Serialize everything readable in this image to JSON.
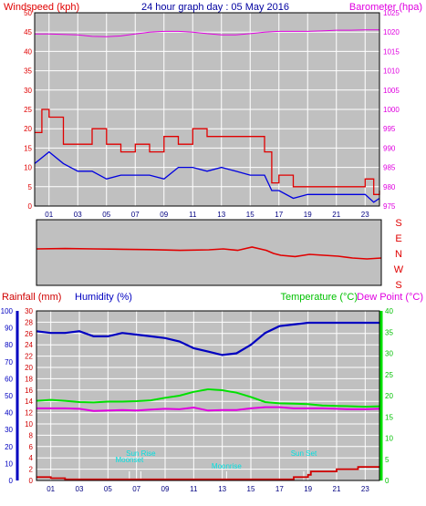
{
  "colors": {
    "background": "#ffffff",
    "plot_bg": "#c0c0c0",
    "grid": "#ffffff",
    "wind": "#e00000",
    "wind_avg": "#0000e0",
    "barometer": "#e000e0",
    "direction": "#e00000",
    "rain": "#d00000",
    "humidity": "#0000c0",
    "temperature": "#00e000",
    "dewpoint": "#e000e0",
    "sun_marks": "#00e0e0",
    "title": "#0000a0"
  },
  "header": {
    "title": "24 hour graph day : 05 May 2016",
    "wind_label": "Windspeed (kph)",
    "baro_label": "Barometer (hpa)"
  },
  "direction_labels": [
    "S",
    "E",
    "N",
    "W",
    "S"
  ],
  "lower_header": {
    "rain_label": "Rainfall (mm)",
    "humidity_label": "Humidity (%)",
    "temp_label": "Temperature (°C)",
    "dew_label": "Dew Point (°C)"
  },
  "annotations": [
    {
      "text": "Sun Rise",
      "hour": 6.3
    },
    {
      "text": "Moonset",
      "hour": 5.5
    },
    {
      "text": "Moonrise",
      "hour": 12.3
    },
    {
      "text": "Sun Set",
      "hour": 17.7
    }
  ],
  "chart_data": [
    {
      "type": "line",
      "title": "24 hour graph day : 05 May 2016",
      "xlabel": "",
      "x_ticks": [
        "01",
        "03",
        "05",
        "07",
        "09",
        "11",
        "13",
        "15",
        "17",
        "19",
        "21",
        "23"
      ],
      "x_range_hours": [
        23,
        47
      ],
      "ylabel_left": "Windspeed (kph)",
      "ylim_left": [
        0,
        50
      ],
      "yticks_left": [
        0,
        5,
        10,
        15,
        20,
        25,
        30,
        35,
        40,
        45,
        50
      ],
      "ylabel_right": "Barometer (hpa)",
      "ylim_right": [
        975,
        1025
      ],
      "yticks_right": [
        975,
        980,
        985,
        990,
        995,
        1000,
        1005,
        1010,
        1015,
        1020,
        1025
      ],
      "grid": true,
      "series": [
        {
          "axis": "left",
          "x": [
            23,
            23.5,
            24,
            25,
            26,
            27,
            28,
            29,
            30,
            31,
            32,
            33,
            34,
            35,
            36,
            37,
            38,
            39,
            39.5,
            40,
            41,
            42,
            43,
            44,
            45,
            46,
            46.6,
            47
          ],
          "values": [
            19,
            25,
            23,
            16,
            16,
            20,
            16,
            14,
            16,
            14,
            18,
            16,
            20,
            18,
            18,
            18,
            18,
            14,
            6,
            8,
            5,
            5,
            5,
            5,
            5,
            7,
            3,
            4
          ]
        },
        {
          "axis": "left",
          "x": [
            23,
            24,
            25,
            26,
            27,
            28,
            29,
            30,
            31,
            32,
            33,
            34,
            35,
            36,
            37,
            38,
            39,
            39.5,
            40,
            41,
            42,
            43,
            44,
            45,
            46,
            46.6,
            47
          ],
          "values": [
            11,
            14,
            11,
            9,
            9,
            7,
            8,
            8,
            8,
            7,
            10,
            10,
            9,
            10,
            9,
            8,
            8,
            4,
            4,
            2,
            3,
            3,
            3,
            3,
            3,
            1,
            2
          ]
        },
        {
          "axis": "right",
          "x": [
            23,
            24,
            25,
            26,
            27,
            28,
            29,
            30,
            31,
            32,
            33,
            34,
            35,
            36,
            37,
            38,
            39,
            40,
            41,
            42,
            43,
            44,
            45,
            46,
            47
          ],
          "values": [
            1019.5,
            1019.5,
            1019.4,
            1019.3,
            1018.9,
            1018.8,
            1019,
            1019.5,
            1020,
            1020.2,
            1020.2,
            1020,
            1019.6,
            1019.3,
            1019.3,
            1019.6,
            1020,
            1020.2,
            1020.2,
            1020.2,
            1020.3,
            1020.5,
            1020.5,
            1020.6,
            1020.6
          ]
        }
      ]
    },
    {
      "type": "line",
      "ylim": [
        0,
        360
      ],
      "series": [
        {
          "x": [
            23,
            25,
            27,
            29,
            31,
            33,
            35,
            36,
            37,
            38,
            39,
            39.5,
            40,
            41,
            42,
            43,
            44,
            45,
            46,
            47
          ],
          "values": [
            200,
            202,
            200,
            198,
            196,
            192,
            195,
            200,
            192,
            210,
            192,
            175,
            165,
            158,
            170,
            165,
            160,
            150,
            145,
            150
          ]
        }
      ]
    },
    {
      "type": "line",
      "x_ticks": [
        "01",
        "03",
        "05",
        "07",
        "09",
        "11",
        "13",
        "15",
        "17",
        "19",
        "21",
        "23"
      ],
      "x_range_hours": [
        23,
        47
      ],
      "ylabel_rain": "Rainfall (mm)",
      "ylim_rain": [
        0,
        30
      ],
      "yticks_rain": [
        0,
        2,
        4,
        6,
        8,
        10,
        12,
        14,
        16,
        18,
        20,
        22,
        24,
        26,
        28,
        30
      ],
      "ylabel_humidity": "Humidity (%)",
      "ylim_humidity": [
        0,
        100
      ],
      "yticks_humidity": [
        0,
        10,
        20,
        30,
        40,
        50,
        60,
        70,
        80,
        90,
        100
      ],
      "ylabel_temp": "Temperature (°C)",
      "ylim_temp": [
        0,
        40
      ],
      "yticks_temp": [
        0,
        5,
        10,
        15,
        20,
        25,
        30,
        35,
        40
      ],
      "grid": true,
      "series": [
        {
          "axis": "rain",
          "x": [
            23,
            24,
            25,
            35,
            40,
            41,
            42,
            42.2,
            43,
            44,
            45,
            45.5,
            46,
            47
          ],
          "values": [
            0.6,
            0.4,
            0.2,
            0.2,
            0.2,
            0.6,
            1.0,
            1.6,
            1.6,
            2.0,
            2.0,
            2.4,
            2.4,
            2.4
          ]
        },
        {
          "axis": "humidity",
          "x": [
            23,
            24,
            25,
            26,
            27,
            28,
            29,
            30,
            31,
            32,
            33,
            34,
            35,
            36,
            37,
            38,
            39,
            40,
            41,
            42,
            43,
            44,
            45,
            46,
            47
          ],
          "values": [
            88,
            87,
            87,
            88,
            85,
            85,
            87,
            86,
            85,
            84,
            82,
            78,
            76,
            74,
            75,
            80,
            87,
            91,
            92,
            93,
            93,
            93,
            93,
            93,
            93
          ]
        },
        {
          "axis": "temp",
          "x": [
            23,
            24,
            25,
            26,
            27,
            28,
            29,
            30,
            31,
            32,
            33,
            34,
            35,
            36,
            37,
            38,
            39,
            40,
            41,
            42,
            43,
            44,
            45,
            46,
            47
          ],
          "values": [
            18.8,
            19,
            18.8,
            18.5,
            18.4,
            18.6,
            18.6,
            18.7,
            18.9,
            19.5,
            20,
            20.9,
            21.5,
            21.3,
            20.7,
            19.7,
            18.5,
            18.2,
            18.1,
            18,
            17.7,
            17.6,
            17.5,
            17.4,
            17.5
          ]
        },
        {
          "axis": "temp",
          "x": [
            23,
            24,
            25,
            26,
            27,
            28,
            29,
            30,
            31,
            32,
            33,
            34,
            35,
            36,
            37,
            38,
            39,
            40,
            41,
            42,
            43,
            44,
            45,
            46,
            47
          ],
          "values": [
            17,
            17,
            17,
            16.9,
            16.4,
            16.5,
            16.6,
            16.5,
            16.7,
            16.9,
            16.8,
            17.2,
            16.5,
            16.6,
            16.6,
            17,
            17.3,
            17.3,
            17,
            17,
            17,
            16.9,
            16.8,
            16.8,
            16.9
          ]
        }
      ]
    }
  ]
}
